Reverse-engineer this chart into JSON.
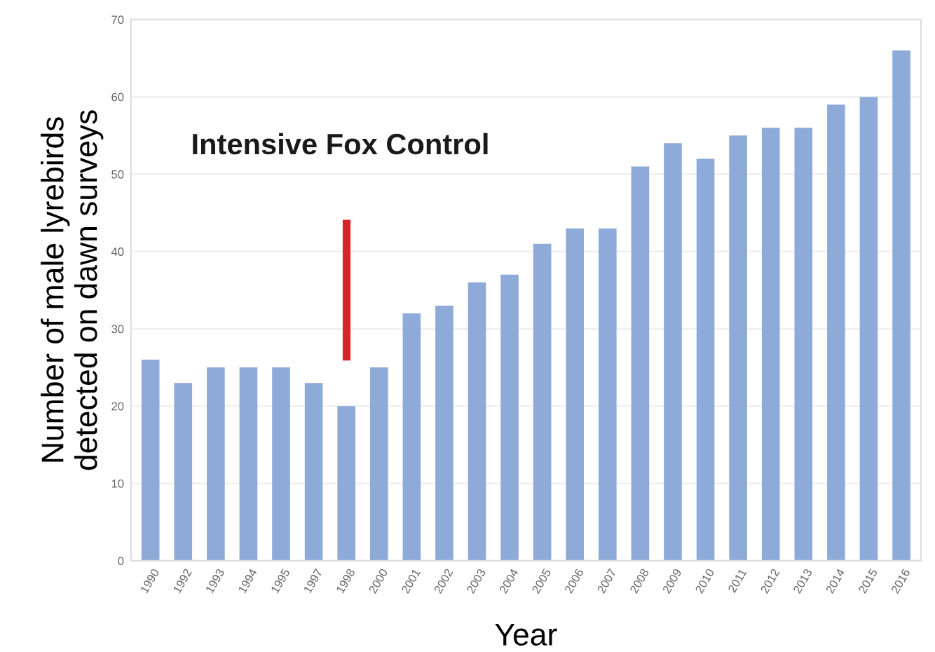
{
  "chart_data": {
    "type": "bar",
    "xlabel": "Year",
    "ylabel": "Number of male lyrebirds\ndetected on dawn surveys",
    "categories": [
      "1990",
      "1992",
      "1993",
      "1994",
      "1995",
      "1997",
      "1998",
      "2000",
      "2001",
      "2002",
      "2003",
      "2004",
      "2005",
      "2006",
      "2007",
      "2008",
      "2009",
      "2010",
      "2011",
      "2012",
      "2013",
      "2014",
      "2015",
      "2016"
    ],
    "values": [
      26,
      23,
      25,
      25,
      25,
      23,
      20,
      25,
      32,
      33,
      36,
      37,
      41,
      43,
      43,
      51,
      54,
      52,
      55,
      56,
      56,
      59,
      60,
      66
    ],
    "color": "#8eaad8",
    "ylim": [
      0,
      70
    ],
    "yticks": [
      0,
      10,
      20,
      30,
      40,
      50,
      60,
      70
    ],
    "grid": "y",
    "annotations": [
      "Intensive Fox Control"
    ]
  }
}
